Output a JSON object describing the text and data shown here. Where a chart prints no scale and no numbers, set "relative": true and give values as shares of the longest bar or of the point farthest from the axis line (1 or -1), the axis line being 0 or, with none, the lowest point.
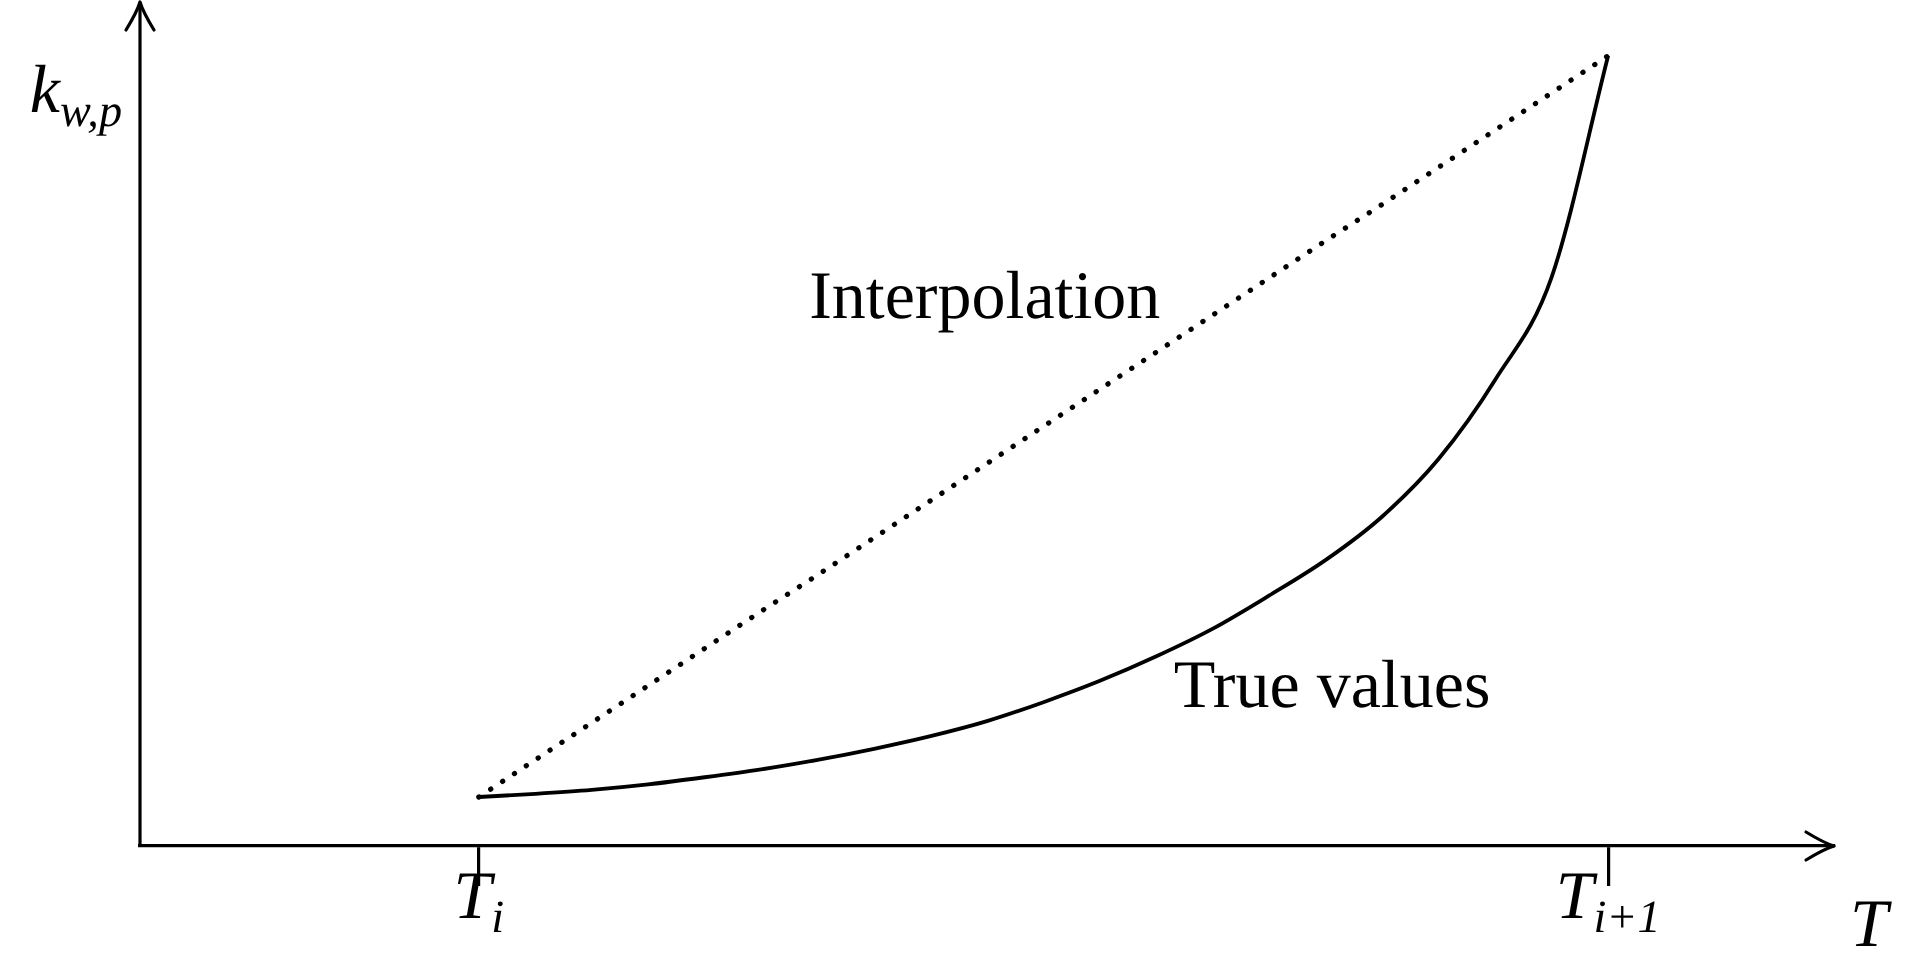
{
  "chart_data": {
    "type": "line",
    "xlabel": "T",
    "ylabel": "k$_{w,p}$",
    "relative": true,
    "marker": "none",
    "categories": [
      null,
      null,
      null,
      null,
      null,
      null,
      "T$_{i}$",
      null,
      null,
      null,
      null,
      null,
      null,
      null,
      null,
      null,
      null,
      null,
      null,
      null,
      null,
      null,
      null,
      null,
      null,
      null,
      "T$_{i+1}$",
      null,
      null,
      null,
      null
    ],
    "series": [
      {
        "name": "Interpolation",
        "color": "#000000",
        "line_style": "dotted",
        "values": [
          null,
          null,
          null,
          null,
          null,
          null,
          0.062,
          0.109,
          0.156,
          0.203,
          0.25,
          0.297,
          0.343,
          0.39,
          0.437,
          0.484,
          0.531,
          0.578,
          0.625,
          0.672,
          0.719,
          0.766,
          0.812,
          0.859,
          0.906,
          0.953,
          1,
          null,
          null,
          null,
          null
        ]
      },
      {
        "name": "True values",
        "color": "#000000",
        "line_style": "solid",
        "values": [
          null,
          null,
          null,
          null,
          null,
          null,
          0.062,
          0.066,
          0.071,
          0.078,
          0.087,
          0.097,
          0.109,
          0.123,
          0.139,
          0.158,
          0.182,
          0.209,
          0.24,
          0.275,
          0.317,
          0.362,
          0.417,
          0.49,
          0.59,
          0.72,
          1,
          null,
          null,
          null,
          null
        ]
      }
    ]
  }
}
